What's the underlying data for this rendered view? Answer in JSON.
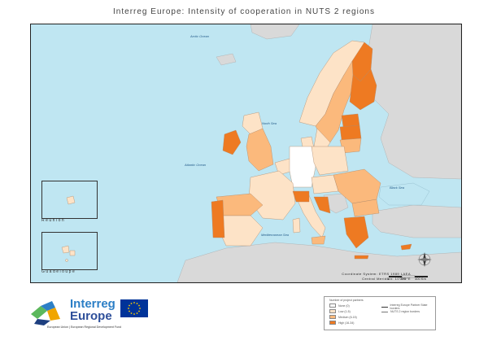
{
  "title": "Interreg Europe: Intensity of cooperation in NUTS 2 regions",
  "map": {
    "sea_labels": {
      "arctic": "Arctic Ocean",
      "north_sea": "North Sea",
      "atlantic": "Atlantic Ocean",
      "black_sea": "Black Sea",
      "mediterranean": "Mediterranean Sea"
    },
    "insets": {
      "reunion": "Réunion",
      "guadeloupe": "Guadeloupe"
    },
    "colors": {
      "sea": "#bfe6f2",
      "non_participating": "#d9d9d9",
      "none": "#ffffff",
      "low": "#fde3c7",
      "medium": "#fbb97c",
      "high": "#ee7a22"
    },
    "coordinate_system": "Coordinate System: ETRS 1989 LAEA",
    "central_meridian": "Central Meridian: 10°0'0\"E",
    "scale": {
      "zero": "0",
      "mid": "200",
      "end": "400 Km"
    },
    "north_arrow": "N"
  },
  "legend": {
    "title": "Number of project partners",
    "items": [
      {
        "label": "None (0)",
        "color": "#ffffff"
      },
      {
        "label": "Low (1-5)",
        "color": "#fde3c7"
      },
      {
        "label": "Medium (6-15)",
        "color": "#fbb97c"
      },
      {
        "label": "High (16-34)",
        "color": "#ee7a22"
      }
    ],
    "lines": [
      {
        "label": "Interreg Europe Partner State borders"
      },
      {
        "label": "NUTS 2 region borders"
      }
    ]
  },
  "logo": {
    "line1": "Interreg",
    "line2": "Europe",
    "subtitle": "European Union | European Regional Development Fund",
    "line1_color": "#2c7fc6",
    "line2_color": "#2e4f9a"
  }
}
